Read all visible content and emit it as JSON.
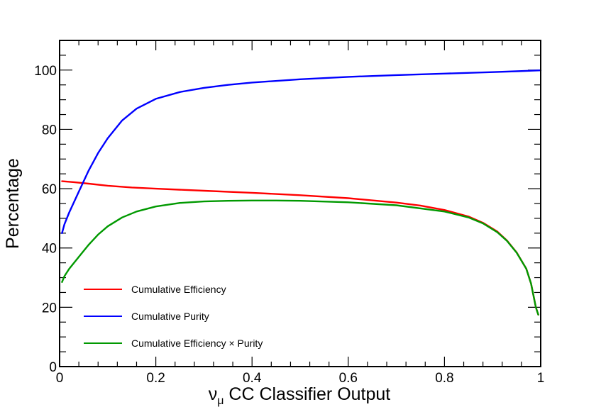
{
  "chart_data": {
    "type": "line",
    "title": "",
    "xlabel_symbol": "ν",
    "xlabel_subscript": "μ",
    "xlabel_rest": " CC Classifier Output",
    "ylabel": "Percentage",
    "xlim": [
      0,
      1
    ],
    "ylim": [
      0,
      110
    ],
    "x_ticks": [
      0,
      0.2,
      0.4,
      0.6,
      0.8,
      1
    ],
    "x_tick_labels": [
      "0",
      "0.2",
      "0.4",
      "0.6",
      "0.8",
      "1"
    ],
    "y_ticks": [
      0,
      20,
      40,
      60,
      80,
      100
    ],
    "y_tick_labels": [
      "0",
      "20",
      "40",
      "60",
      "80",
      "100"
    ],
    "grid": false,
    "legend_position": "bottom-left",
    "series": [
      {
        "name": "Cumulative Efficiency",
        "color": "#ff0000",
        "x": [
          0.005,
          0.03,
          0.06,
          0.1,
          0.15,
          0.2,
          0.3,
          0.4,
          0.5,
          0.6,
          0.7,
          0.75,
          0.8,
          0.85,
          0.88,
          0.91,
          0.93,
          0.95,
          0.97,
          0.98,
          0.99,
          0.995
        ],
        "y": [
          62.5,
          62.2,
          61.7,
          61.0,
          60.4,
          60.0,
          59.3,
          58.6,
          57.8,
          56.8,
          55.3,
          54.3,
          52.8,
          50.6,
          48.5,
          45.5,
          42.5,
          38.5,
          33.0,
          28.0,
          20.0,
          17.5
        ]
      },
      {
        "name": "Cumulative Purity",
        "color": "#0000ff",
        "x": [
          0.005,
          0.01,
          0.02,
          0.04,
          0.06,
          0.08,
          0.1,
          0.13,
          0.16,
          0.2,
          0.25,
          0.3,
          0.35,
          0.4,
          0.5,
          0.6,
          0.7,
          0.8,
          0.9,
          0.95,
          1.0
        ],
        "y": [
          45,
          48,
          52,
          59,
          66,
          72,
          77,
          83,
          87,
          90.3,
          92.6,
          94.0,
          95.0,
          95.8,
          96.9,
          97.7,
          98.3,
          98.8,
          99.3,
          99.6,
          99.9
        ]
      },
      {
        "name": "Cumulative Efficiency × Purity",
        "color": "#009900",
        "x": [
          0.005,
          0.01,
          0.02,
          0.04,
          0.06,
          0.08,
          0.1,
          0.13,
          0.16,
          0.2,
          0.25,
          0.3,
          0.35,
          0.4,
          0.45,
          0.5,
          0.6,
          0.7,
          0.8,
          0.85,
          0.88,
          0.91,
          0.93,
          0.95,
          0.97,
          0.98,
          0.99,
          0.995
        ],
        "y": [
          28.5,
          30.5,
          33,
          37,
          41,
          44.5,
          47.3,
          50.3,
          52.3,
          54.0,
          55.2,
          55.7,
          55.9,
          56.0,
          56.0,
          55.9,
          55.4,
          54.4,
          52.3,
          50.3,
          48.3,
          45.3,
          42.4,
          38.4,
          33.0,
          28.0,
          20.0,
          17.5
        ]
      }
    ],
    "legend_times_symbol": "×"
  }
}
